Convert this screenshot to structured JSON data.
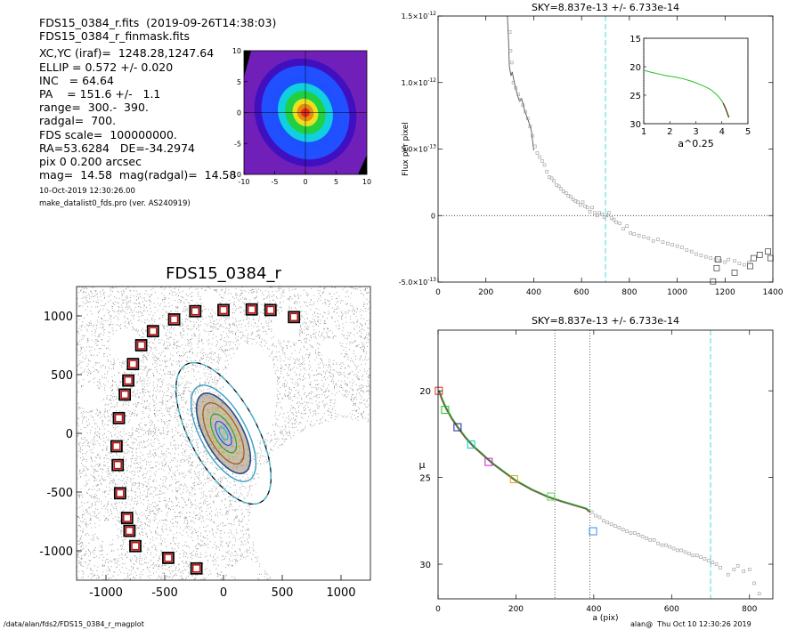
{
  "header": {
    "lines": [
      "FDS15_0384_r.fits  (2019-09-26T14:38:03)",
      "FDS15_0384_r_finmask.fits",
      "XC,YC (iraf)=  1248.28,1247.64",
      "ELLIP = 0.572 +/- 0.020",
      "INC   = 64.64",
      "PA    = 151.6 +/-   1.1",
      "range=  300.-  390.",
      "radgal=  700.",
      "FDS scale=  100000000.",
      "RA=53.6284   DE=-34.2974",
      "pix 0 0.200 arcsec",
      "mag=  14.58  mag(radgal)=  14.58"
    ],
    "timestamp": "10-Oct-2019 12:30:26.00",
    "program": "make_datalist0_fds.pro (ver. AS240919)"
  },
  "footer": {
    "path": "/data/alan/fds2/FDS15_0384_r_magplot",
    "user": "alan@  Thu Oct 10 12:30:26 2019"
  },
  "colors": {
    "core": "#e03020",
    "ring_orange": "#e88a10",
    "ring_yellow": "#e8e020",
    "ring_green": "#20d040",
    "ring_cyan": "#10d0e0",
    "ring_blue": "#2050ff",
    "ring_violet": "#4010c0",
    "ring_purple": "#7020b8",
    "mask": "#000000",
    "sky_line": "#40e0e0",
    "marker_red": "#c01010",
    "curve_green": "#20c020"
  },
  "chart_data": [
    {
      "id": "thumbnail",
      "type": "heatmap",
      "xlim": [
        -10,
        10
      ],
      "ylim": [
        -10,
        10
      ],
      "xticks": [
        "-10",
        "-5",
        "0",
        "5",
        "10"
      ],
      "yticks": [
        "-10",
        "-5",
        "0",
        "5",
        "10"
      ]
    },
    {
      "id": "sky-profile",
      "type": "scatter",
      "title": "SKY=8.837e-13 +/- 6.733e-14",
      "ylabel": "Flux per pixel",
      "xlim": [
        0,
        1400
      ],
      "ylim": [
        -5e-13,
        1.5e-12
      ],
      "xticks": [
        "0",
        "200",
        "400",
        "600",
        "800",
        "1000",
        "1200",
        "1400"
      ],
      "ytick_labels": [
        {
          "value": 1.5e-12,
          "mant": "1.5",
          "exp": "-12"
        },
        {
          "value": 1e-12,
          "mant": "1.0",
          "exp": "-12"
        },
        {
          "value": 5e-13,
          "mant": "5.0",
          "exp": "-13"
        },
        {
          "value": 0,
          "mant": "0",
          "exp": ""
        },
        {
          "value": -5e-13,
          "mant": "-5.0",
          "exp": "-13"
        }
      ],
      "sky_radius": 700,
      "zero_line": 0,
      "line_series": [
        [
          290,
          1.5e-12
        ],
        [
          295,
          1.3e-12
        ],
        [
          298,
          1.12e-12
        ],
        [
          305,
          1.05e-12
        ],
        [
          310,
          1.08e-12
        ],
        [
          320,
          9.9e-13
        ],
        [
          330,
          9.2e-13
        ],
        [
          340,
          8.6e-13
        ],
        [
          350,
          8.8e-13
        ],
        [
          360,
          8e-13
        ],
        [
          370,
          7.5e-13
        ],
        [
          380,
          7e-13
        ],
        [
          390,
          6.4e-13
        ],
        [
          400,
          4.9e-13
        ]
      ],
      "points": [
        [
          300,
          1.38e-12
        ],
        [
          303,
          1.24e-12
        ],
        [
          308,
          1.15e-12
        ],
        [
          315,
          1e-12
        ],
        [
          325,
          9.6e-13
        ],
        [
          335,
          9.1e-13
        ],
        [
          345,
          8.7e-13
        ],
        [
          355,
          8.3e-13
        ],
        [
          365,
          7.8e-13
        ],
        [
          375,
          7.3e-13
        ],
        [
          385,
          6.7e-13
        ],
        [
          395,
          6e-13
        ],
        [
          405,
          5.2e-13
        ],
        [
          415,
          4.7e-13
        ],
        [
          425,
          4.4e-13
        ],
        [
          435,
          4.1e-13
        ],
        [
          445,
          3.8e-13
        ],
        [
          455,
          3.3e-13
        ],
        [
          465,
          2.9e-13
        ],
        [
          475,
          2.8e-13
        ],
        [
          485,
          2.6e-13
        ],
        [
          495,
          2.3e-13
        ],
        [
          505,
          2.2e-13
        ],
        [
          515,
          2e-13
        ],
        [
          525,
          1.8e-13
        ],
        [
          535,
          1.7e-13
        ],
        [
          545,
          1.5e-13
        ],
        [
          555,
          1.4e-13
        ],
        [
          565,
          1.2e-13
        ],
        [
          575,
          1.1e-13
        ],
        [
          585,
          1e-13
        ],
        [
          595,
          8e-14
        ],
        [
          605,
          1e-13
        ],
        [
          615,
          7e-14
        ],
        [
          625,
          6e-14
        ],
        [
          635,
          3e-14
        ],
        [
          645,
          6e-14
        ],
        [
          655,
          2e-14
        ],
        [
          665,
          0
        ],
        [
          675,
          2e-14
        ],
        [
          685,
          1e-14
        ],
        [
          695,
          -1e-14
        ],
        [
          705,
          0
        ],
        [
          715,
          2e-14
        ],
        [
          725,
          -2e-14
        ],
        [
          735,
          -3e-14
        ],
        [
          745,
          -5e-14
        ],
        [
          760,
          -6e-14
        ],
        [
          775,
          -1e-13
        ],
        [
          790,
          -8e-14
        ],
        [
          805,
          -1.3e-13
        ],
        [
          820,
          -1.4e-13
        ],
        [
          840,
          -1.5e-13
        ],
        [
          860,
          -1.6e-13
        ],
        [
          880,
          -1.7e-13
        ],
        [
          900,
          -1.9e-13
        ],
        [
          920,
          -1.8e-13
        ],
        [
          940,
          -2e-13
        ],
        [
          960,
          -2.1e-13
        ],
        [
          980,
          -2.2e-13
        ],
        [
          1000,
          -2.3e-13
        ],
        [
          1020,
          -2.4e-13
        ],
        [
          1040,
          -2.6e-13
        ],
        [
          1060,
          -2.7e-13
        ],
        [
          1080,
          -2.9e-13
        ],
        [
          1100,
          -3e-13
        ],
        [
          1120,
          -3.1e-13
        ],
        [
          1140,
          -3.2e-13
        ],
        [
          1160,
          -3.3e-13
        ],
        [
          1180,
          -3.4e-13
        ],
        [
          1200,
          -3.5e-13
        ],
        [
          1215,
          -3.3e-13
        ],
        [
          1240,
          -3.4e-13
        ],
        [
          1260,
          -3.6e-13
        ],
        [
          1280,
          -3.7e-13
        ],
        [
          1300,
          -3.5e-13
        ]
      ],
      "square_points": [
        [
          1150,
          -4.95e-13
        ],
        [
          1165,
          -3.95e-13
        ],
        [
          1170,
          -3.3e-13
        ],
        [
          1240,
          -4.3e-13
        ],
        [
          1305,
          -3.8e-13
        ],
        [
          1320,
          -3.2e-13
        ],
        [
          1345,
          -2.95e-13
        ],
        [
          1380,
          -2.7e-13
        ],
        [
          1390,
          -3.2e-13
        ]
      ],
      "inset": {
        "type": "line",
        "xlabel": "a^0.25",
        "xlim": [
          1,
          5
        ],
        "ylim": [
          15,
          30
        ],
        "xticks": [
          "1",
          "2",
          "3",
          "4",
          "5"
        ],
        "yticks": [
          "15",
          "20",
          "25",
          "30"
        ],
        "line": [
          [
            1.0,
            20.6
          ],
          [
            1.3,
            21.0
          ],
          [
            1.6,
            21.3
          ],
          [
            1.9,
            21.6
          ],
          [
            2.2,
            21.8
          ],
          [
            2.5,
            22.1
          ],
          [
            2.8,
            22.5
          ],
          [
            3.1,
            23.0
          ],
          [
            3.4,
            23.6
          ],
          [
            3.6,
            24.1
          ],
          [
            3.8,
            24.9
          ],
          [
            3.95,
            25.7
          ],
          [
            4.05,
            26.4
          ],
          [
            4.15,
            27.4
          ],
          [
            4.22,
            28.3
          ],
          [
            4.27,
            28.9
          ]
        ]
      }
    },
    {
      "id": "mask-map",
      "type": "scatter",
      "title": "FDS15_0384_r",
      "xlim": [
        -1250,
        1250
      ],
      "ylim": [
        -1250,
        1250
      ],
      "xticks": [
        "-1000",
        "-500",
        "0",
        "500",
        "1000"
      ],
      "yticks": [
        "1000",
        "500",
        "0",
        "-500",
        "-1000"
      ],
      "ellipse_pa": 151.6,
      "ellipse_ellip": 0.572,
      "sky_boxes": [
        [
          -240,
          1040
        ],
        [
          0,
          1050
        ],
        [
          240,
          1055
        ],
        [
          400,
          1050
        ],
        [
          600,
          990
        ],
        [
          -420,
          970
        ],
        [
          -600,
          870
        ],
        [
          -700,
          750
        ],
        [
          -770,
          590
        ],
        [
          -810,
          450
        ],
        [
          -840,
          330
        ],
        [
          -890,
          130
        ],
        [
          -910,
          -110
        ],
        [
          -900,
          -270
        ],
        [
          -880,
          -510
        ],
        [
          -820,
          -720
        ],
        [
          -800,
          -830
        ],
        [
          -750,
          -960
        ],
        [
          -470,
          -1060
        ],
        [
          -230,
          -1150
        ]
      ]
    },
    {
      "id": "mu-profile",
      "type": "line",
      "title": "SKY=8.837e-13 +/- 6.733e-14",
      "xlabel": "a (pix)",
      "ylabel": "μ",
      "xlim": [
        0,
        860
      ],
      "ylim": [
        32,
        16.5
      ],
      "xticks": [
        "0",
        "200",
        "400",
        "600",
        "800"
      ],
      "yticks": [
        "20",
        "25",
        "30"
      ],
      "range_lines": [
        300,
        390
      ],
      "sky_radius": 700,
      "curve": [
        [
          2,
          20.0
        ],
        [
          10,
          20.5
        ],
        [
          20,
          21.0
        ],
        [
          35,
          21.6
        ],
        [
          50,
          22.1
        ],
        [
          70,
          22.7
        ],
        [
          90,
          23.2
        ],
        [
          115,
          23.7
        ],
        [
          140,
          24.2
        ],
        [
          170,
          24.7
        ],
        [
          200,
          25.2
        ],
        [
          240,
          25.7
        ],
        [
          280,
          26.1
        ],
        [
          320,
          26.4
        ],
        [
          350,
          26.6
        ],
        [
          380,
          26.8
        ],
        [
          390,
          27.0
        ]
      ],
      "gray_points": [
        [
          395,
          27.0
        ],
        [
          405,
          27.2
        ],
        [
          415,
          27.3
        ],
        [
          425,
          27.5
        ],
        [
          435,
          27.6
        ],
        [
          445,
          27.7
        ],
        [
          455,
          27.8
        ],
        [
          465,
          27.9
        ],
        [
          475,
          28.0
        ],
        [
          485,
          28.1
        ],
        [
          495,
          28.2
        ],
        [
          505,
          28.2
        ],
        [
          515,
          28.3
        ],
        [
          525,
          28.4
        ],
        [
          535,
          28.5
        ],
        [
          545,
          28.6
        ],
        [
          555,
          28.6
        ],
        [
          565,
          28.8
        ],
        [
          575,
          28.9
        ],
        [
          585,
          28.9
        ],
        [
          595,
          29.0
        ],
        [
          605,
          29.1
        ],
        [
          615,
          29.2
        ],
        [
          625,
          29.2
        ],
        [
          635,
          29.3
        ],
        [
          645,
          29.4
        ],
        [
          655,
          29.5
        ],
        [
          665,
          29.5
        ],
        [
          675,
          29.6
        ],
        [
          685,
          29.7
        ],
        [
          695,
          29.8
        ],
        [
          705,
          29.9
        ],
        [
          715,
          30.0
        ],
        [
          725,
          30.2
        ],
        [
          745,
          30.6
        ],
        [
          760,
          30.3
        ],
        [
          770,
          30.1
        ],
        [
          785,
          30.4
        ],
        [
          800,
          30.3
        ],
        [
          812,
          31.1
        ],
        [
          825,
          31.7
        ]
      ],
      "squares": [
        {
          "x": 2,
          "y": 20.0,
          "color": "#e03020"
        },
        {
          "x": 18,
          "y": 21.1,
          "color": "#20c020"
        },
        {
          "x": 50,
          "y": 22.1,
          "color": "#2020a0"
        },
        {
          "x": 85,
          "y": 23.1,
          "color": "#10c0c0"
        },
        {
          "x": 130,
          "y": 24.1,
          "color": "#c020c0"
        },
        {
          "x": 195,
          "y": 25.1,
          "color": "#e0a010"
        },
        {
          "x": 290,
          "y": 26.1,
          "color": "#60d060"
        },
        {
          "x": 398,
          "y": 28.1,
          "color": "#3090f0"
        }
      ]
    }
  ]
}
